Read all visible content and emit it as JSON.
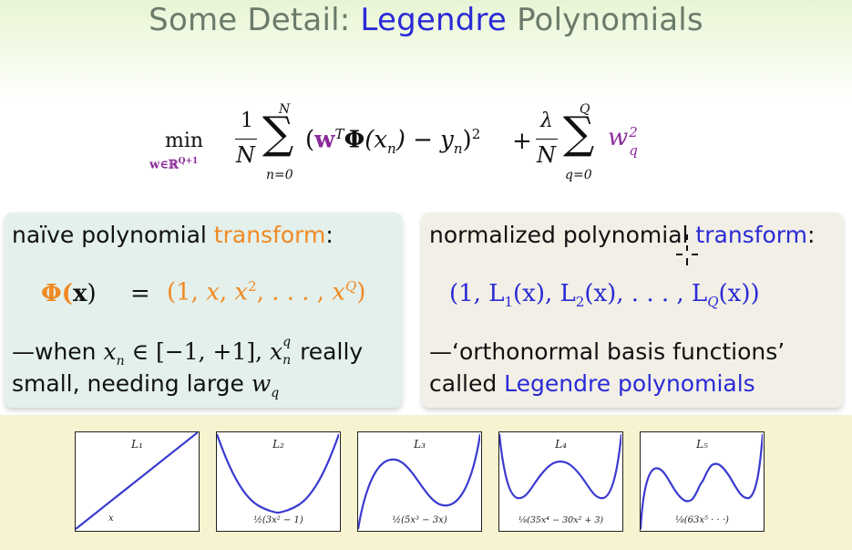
{
  "slide": {
    "title_prefix": "Some Detail: ",
    "title_accent": "Legendre",
    "title_suffix": " Polynomials"
  },
  "formula": {
    "min": "min",
    "min_sub": "w∈ℝ",
    "min_sub_sup": "Q+1",
    "frac1_num": "1",
    "frac1_den": "N",
    "sum1_top": "N",
    "sum1_bottom": "n=0",
    "term_open": "(",
    "term_w": "w",
    "term_T": "T",
    "term_phi": "Φ",
    "term_rest": "(x",
    "term_n": "n",
    "term_minus": ") − y",
    "term_yn": "n",
    "term_close": ")",
    "term_sq": "2",
    "plus": "+",
    "frac2_num": "λ",
    "frac2_den": "N",
    "sum2_top": "Q",
    "sum2_bottom": "q=0",
    "wq": "w",
    "wq_sub": "q",
    "wq_sup": "2"
  },
  "left_panel": {
    "heading_plain": "naïve polynomial ",
    "heading_accent": "transform",
    "heading_colon": ":",
    "phi_label": "Φ(",
    "phi_x": "x",
    "phi_close": ")",
    "equals": "=",
    "vector_open": "(1, ",
    "vector_x": "x",
    "vector_comma": ", ",
    "vector_x2": "x",
    "vector_sup2": "2",
    "vector_dots": ", . . . , ",
    "vector_xQ": "x",
    "vector_supQ": "Q",
    "vector_close": ")",
    "note_line1_a": "—when ",
    "note_xn": "x",
    "note_n": "n",
    "note_in": " ∈ [−1, +1], ",
    "note_xnq": "x",
    "note_q": "q",
    "note_n2": "n",
    "note_line1_b": " really",
    "note_line2_a": "small, needing large ",
    "note_wq": "w",
    "note_wq_sub": "q"
  },
  "right_panel": {
    "heading_plain": "normalized polynomial ",
    "heading_accent": "transform",
    "heading_colon": ":",
    "vector_text": "(1, L",
    "l1_sub": "1",
    "l1_arg": "(x), L",
    "l2_sub": "2",
    "l2_arg": "(x), . . . , L",
    "lq_sub": "Q",
    "lq_arg": "(x))",
    "note_line1": "—‘orthonormal basis functions’",
    "note_line2_plain": "called ",
    "note_line2_accent": "Legendre polynomials"
  },
  "plots": [
    {
      "label": "L₁",
      "formula": "x"
    },
    {
      "label": "L₂",
      "formula": "½(3x² − 1)"
    },
    {
      "label": "L₃",
      "formula": "½(5x³ − 3x)"
    },
    {
      "label": "L₄",
      "formula": "⅛(35x⁴ − 30x² + 3)"
    },
    {
      "label": "L₅",
      "formula": "⅛(63x⁵ · · ·)"
    }
  ],
  "colors": {
    "accent_blue": "#2a2ad6",
    "accent_orange": "#f08a24",
    "accent_purple": "#8a2a9a",
    "curve": "#3a3ad0"
  },
  "icons": {
    "cursor": "crosshair-cursor-icon"
  }
}
